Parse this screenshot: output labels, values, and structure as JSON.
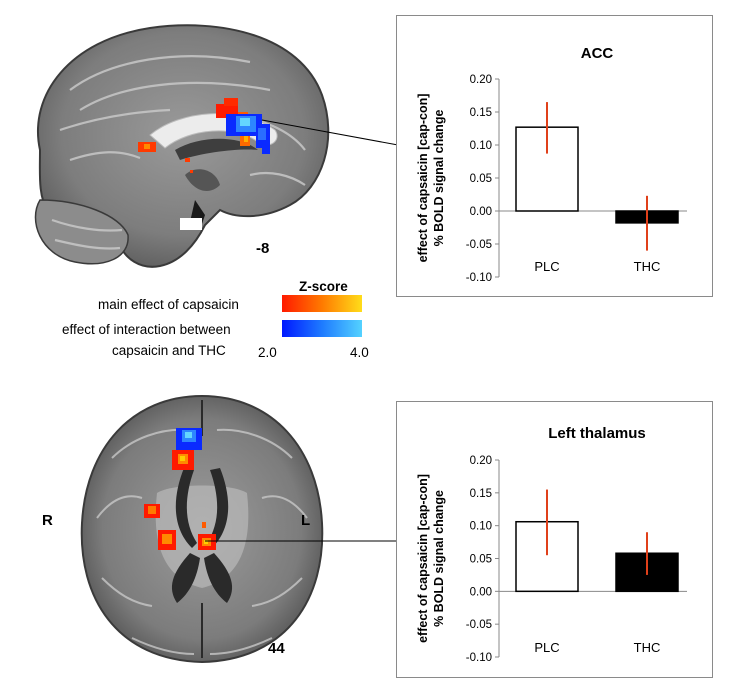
{
  "brain_images": {
    "sagittal": {
      "slice_label": "-8"
    },
    "axial": {
      "slice_label": "44",
      "right_label": "R",
      "left_label": "L"
    }
  },
  "legend": {
    "title": "Z-score",
    "main_effect_label": "main effect of capsaicin",
    "interaction_label_line1": "effect of interaction between",
    "interaction_label_line2": "capsaicin and THC",
    "min_label": "2.0",
    "max_label": "4.0",
    "main_effect_colors": [
      "#ff1a00",
      "#ff7a00",
      "#ffdd1a"
    ],
    "interaction_colors": [
      "#0018ff",
      "#1e7bff",
      "#54d2ff"
    ]
  },
  "chart_data": [
    {
      "type": "bar",
      "title": "ACC",
      "ylabel_line1": "effect of capsaicin [cap-con]",
      "ylabel_line2": "% BOLD signal change",
      "categories": [
        "PLC",
        "THC"
      ],
      "values": [
        0.127,
        -0.018
      ],
      "error_low": [
        0.087,
        -0.06
      ],
      "error_high": [
        0.165,
        0.023
      ],
      "bar_fill": [
        "#ffffff",
        "#000000"
      ],
      "error_color": "#e0401a",
      "ylim": [
        -0.1,
        0.2
      ],
      "yticks": [
        "0.20",
        "0.15",
        "0.10",
        "0.05",
        "0.00",
        "-0.05",
        "-0.10"
      ],
      "ytick_values": [
        0.2,
        0.15,
        0.1,
        0.05,
        0.0,
        -0.05,
        -0.1
      ]
    },
    {
      "type": "bar",
      "title": "Left thalamus",
      "ylabel_line1": "effect of capsaicin [cap-con]",
      "ylabel_line2": "% BOLD signal change",
      "categories": [
        "PLC",
        "THC"
      ],
      "values": [
        0.106,
        0.058
      ],
      "error_low": [
        0.055,
        0.025
      ],
      "error_high": [
        0.155,
        0.09
      ],
      "bar_fill": [
        "#ffffff",
        "#000000"
      ],
      "error_color": "#e0401a",
      "ylim": [
        -0.1,
        0.2
      ],
      "yticks": [
        "0.20",
        "0.15",
        "0.10",
        "0.05",
        "0.00",
        "-0.05",
        "-0.10"
      ],
      "ytick_values": [
        0.2,
        0.15,
        0.1,
        0.05,
        0.0,
        -0.05,
        -0.1
      ]
    }
  ]
}
